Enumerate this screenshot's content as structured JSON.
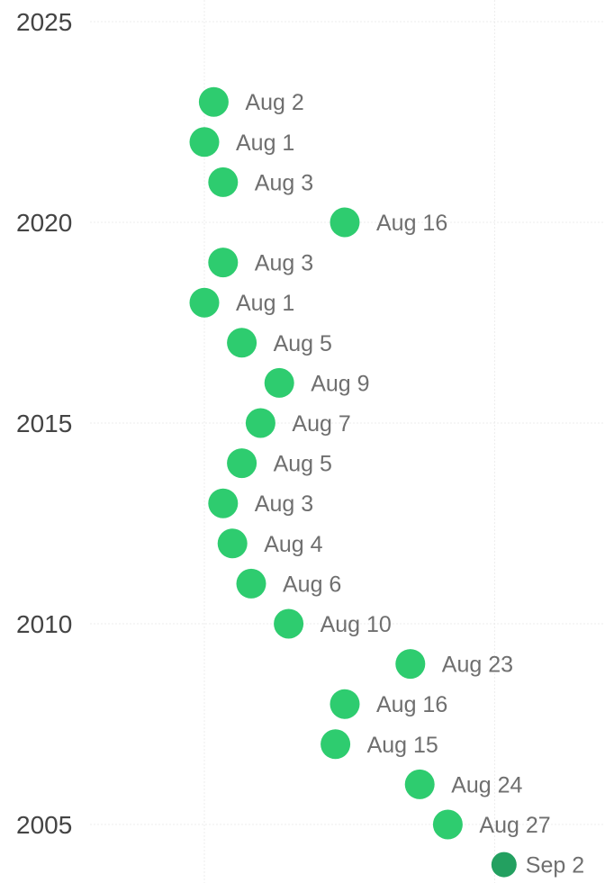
{
  "chart_data": {
    "type": "scatter",
    "title": "",
    "xlabel": "",
    "ylabel": "",
    "y_ticks": [
      2025,
      2020,
      2015,
      2010,
      2005
    ],
    "ylim": [
      2003.5,
      2025.5
    ],
    "xlim": [
      "Jul 24",
      "Sep 5"
    ],
    "grid": true,
    "series": [
      {
        "points": [
          {
            "year": 2023,
            "date": "08-02",
            "label": "Aug 2"
          },
          {
            "year": 2022,
            "date": "08-01",
            "label": "Aug 1"
          },
          {
            "year": 2021,
            "date": "08-03",
            "label": "Aug 3"
          },
          {
            "year": 2020,
            "date": "08-16",
            "label": "Aug 16"
          },
          {
            "year": 2019,
            "date": "08-03",
            "label": "Aug 3"
          },
          {
            "year": 2018,
            "date": "08-01",
            "label": "Aug 1"
          },
          {
            "year": 2017,
            "date": "08-05",
            "label": "Aug 5"
          },
          {
            "year": 2016,
            "date": "08-09",
            "label": "Aug 9"
          },
          {
            "year": 2015,
            "date": "08-07",
            "label": "Aug 7"
          },
          {
            "year": 2014,
            "date": "08-05",
            "label": "Aug 5"
          },
          {
            "year": 2013,
            "date": "08-03",
            "label": "Aug 3"
          },
          {
            "year": 2012,
            "date": "08-04",
            "label": "Aug 4"
          },
          {
            "year": 2011,
            "date": "08-06",
            "label": "Aug 6"
          },
          {
            "year": 2010,
            "date": "08-10",
            "label": "Aug 10"
          },
          {
            "year": 2009,
            "date": "08-23",
            "label": "Aug 23"
          },
          {
            "year": 2008,
            "date": "08-16",
            "label": "Aug 16"
          },
          {
            "year": 2007,
            "date": "08-15",
            "label": "Aug 15"
          },
          {
            "year": 2006,
            "date": "08-24",
            "label": "Aug 24"
          },
          {
            "year": 2005,
            "date": "08-27",
            "label": "Aug 27"
          },
          {
            "year": 2004,
            "date": "09-02",
            "label": "Sep 2",
            "highlight": true
          }
        ]
      }
    ],
    "colors": {
      "point": "#2ecc6f",
      "point_highlight": "#23a060",
      "grid": "#ececec",
      "tick_label": "#444444",
      "point_label": "#6f6f6f"
    }
  }
}
